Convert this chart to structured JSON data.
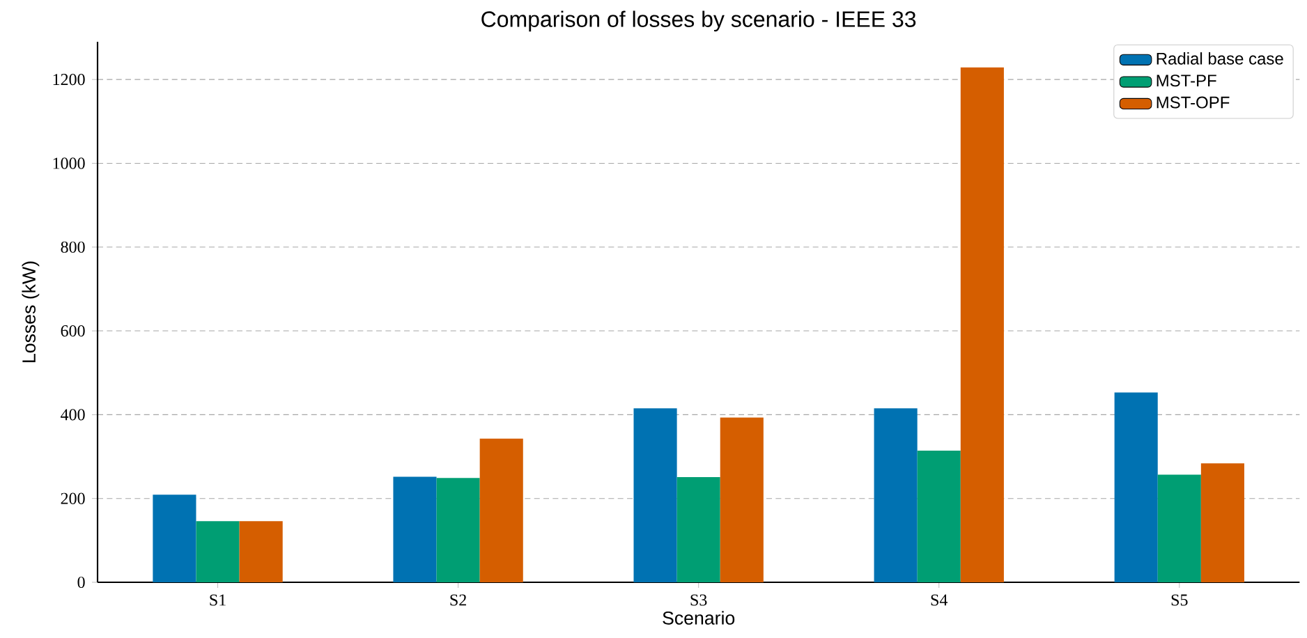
{
  "chart_data": {
    "type": "bar",
    "title": "Comparison of losses by scenario - IEEE 33",
    "xlabel": "Scenario",
    "ylabel": "Losses (kW)",
    "categories": [
      "S1",
      "S2",
      "S3",
      "S4",
      "S5"
    ],
    "series": [
      {
        "name": "Radial base case",
        "color": "#0072b2",
        "values": [
          209,
          252,
          415,
          415,
          453
        ]
      },
      {
        "name": "MST-PF",
        "color": "#009e73",
        "values": [
          146,
          249,
          251,
          314,
          257
        ]
      },
      {
        "name": "MST-OPF",
        "color": "#d55e00",
        "values": [
          146,
          343,
          393,
          1229,
          284
        ]
      }
    ],
    "ylim": [
      0,
      1290
    ],
    "yticks": [
      0,
      200,
      400,
      600,
      800,
      1000,
      1200
    ],
    "grid": "y",
    "legend": "top right"
  }
}
